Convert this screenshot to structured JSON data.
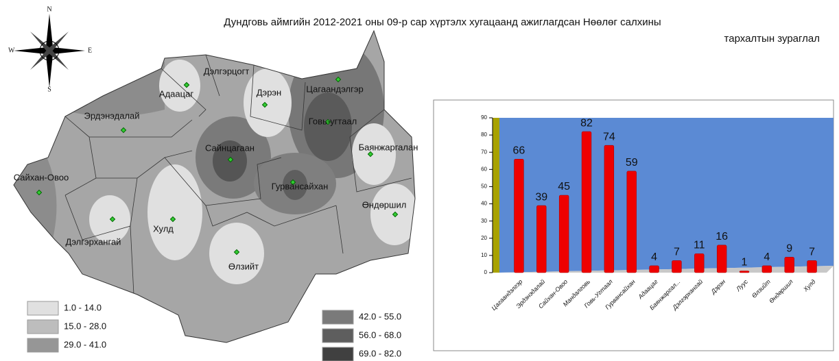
{
  "title": [
    "Дундговь аймгийн 2012-2021 оны 09-р сар хүртэлх хугацаанд ажиглагдсан Нөөлөг салхины",
    "тархалтын   зураглал"
  ],
  "map": {
    "compass": [
      "N",
      "E",
      "S",
      "W"
    ],
    "labels": [
      "Дэлгэрцогт",
      "Адаацаг",
      "Дэрэн",
      "Цагаандэлгэр",
      "Эрдэнэдалай",
      "Говь-угтаал",
      "Сайнцагаан",
      "Баянжаргалан",
      "Сайхан-Овоо",
      "Гурвансайхан",
      "Өндөршил",
      "Хулд",
      "Дэлгэрхангай",
      "Өлзийт"
    ]
  },
  "legend": [
    {
      "label": "1.0 - 14.0",
      "color": "#e0e0e0"
    },
    {
      "label": "15.0 - 28.0",
      "color": "#bdbdbd"
    },
    {
      "label": "29.0 - 41.0",
      "color": "#969696"
    },
    {
      "label": "42.0 - 55.0",
      "color": "#7a7a7a"
    },
    {
      "label": "56.0 - 68.0",
      "color": "#5e5e5e"
    },
    {
      "label": "69.0 - 82.0",
      "color": "#404040"
    }
  ],
  "chart_data": {
    "type": "bar",
    "color": "#ee0000",
    "categories": [
      "Цагаандэлгэр",
      "Эрдэнэдалай",
      "Сайхан-Овоо",
      "Мандалговь",
      "Говь-Угтаал",
      "Гурвансайхан",
      "Адаацаг",
      "Баянжаргал...",
      "Дэлгэрхангай",
      "Дэрэн",
      "Луус",
      "Өлзийт",
      "Өндөршил",
      "Хулд"
    ],
    "values": [
      66,
      39,
      45,
      82,
      74,
      59,
      4,
      7,
      11,
      16,
      1,
      4,
      9,
      7
    ],
    "ylim": [
      0,
      90
    ],
    "yticks": [
      0,
      10,
      20,
      30,
      40,
      50,
      60,
      70,
      80,
      90
    ]
  }
}
